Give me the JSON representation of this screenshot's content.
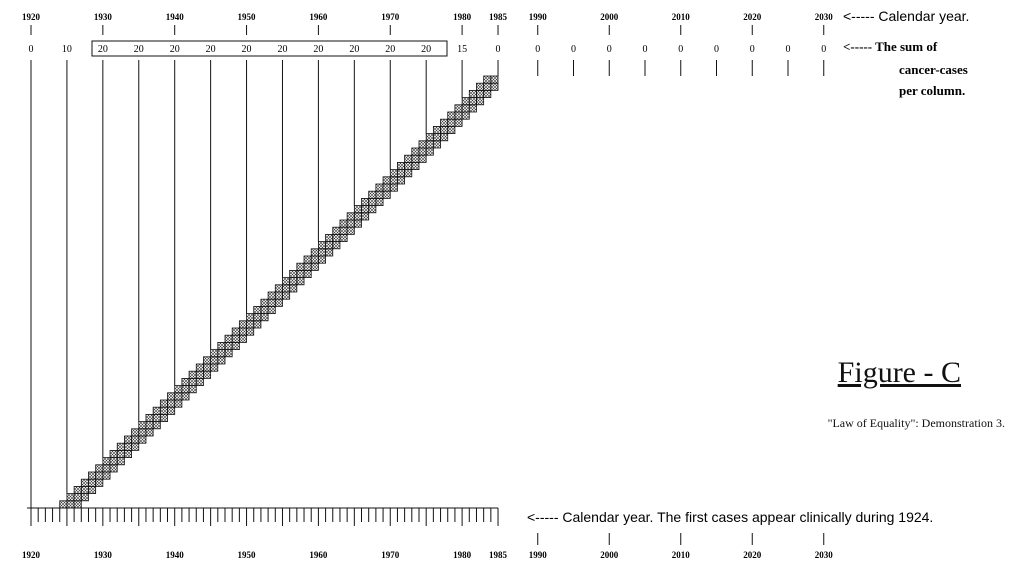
{
  "top_axis": {
    "years": [
      "1920",
      "1930",
      "1940",
      "1950",
      "1960",
      "1970",
      "1980",
      "1985",
      "1990",
      "2000",
      "2010",
      "2020",
      "2030"
    ],
    "label": "<----- Calendar year."
  },
  "sums": {
    "values": [
      "0",
      "10",
      "20",
      "20",
      "20",
      "20",
      "20",
      "20",
      "20",
      "20",
      "20",
      "20",
      "15",
      "0",
      "0",
      "0",
      "0",
      "0",
      "0",
      "0",
      "0",
      "0",
      "0"
    ],
    "label_lines": [
      "<----- The sum of",
      "cancer-cases",
      "per column."
    ]
  },
  "bottom_axis": {
    "years": [
      "1920",
      "1930",
      "1940",
      "1950",
      "1960",
      "1970",
      "1980",
      "1985",
      "1990",
      "2000",
      "2010",
      "2020",
      "2030"
    ],
    "label": "<----- Calendar year.  The first cases appear clinically during 1924."
  },
  "figure": {
    "title": "Figure - C",
    "subtitle": "\"Law of Equality\": Demonstration 3."
  },
  "diagram": {
    "first_case_year": 1924,
    "last_case_year": 1983,
    "cases_per_year": 2,
    "column_width_years": 5
  },
  "colors": {
    "ink": "#111111",
    "background": "#ffffff"
  }
}
